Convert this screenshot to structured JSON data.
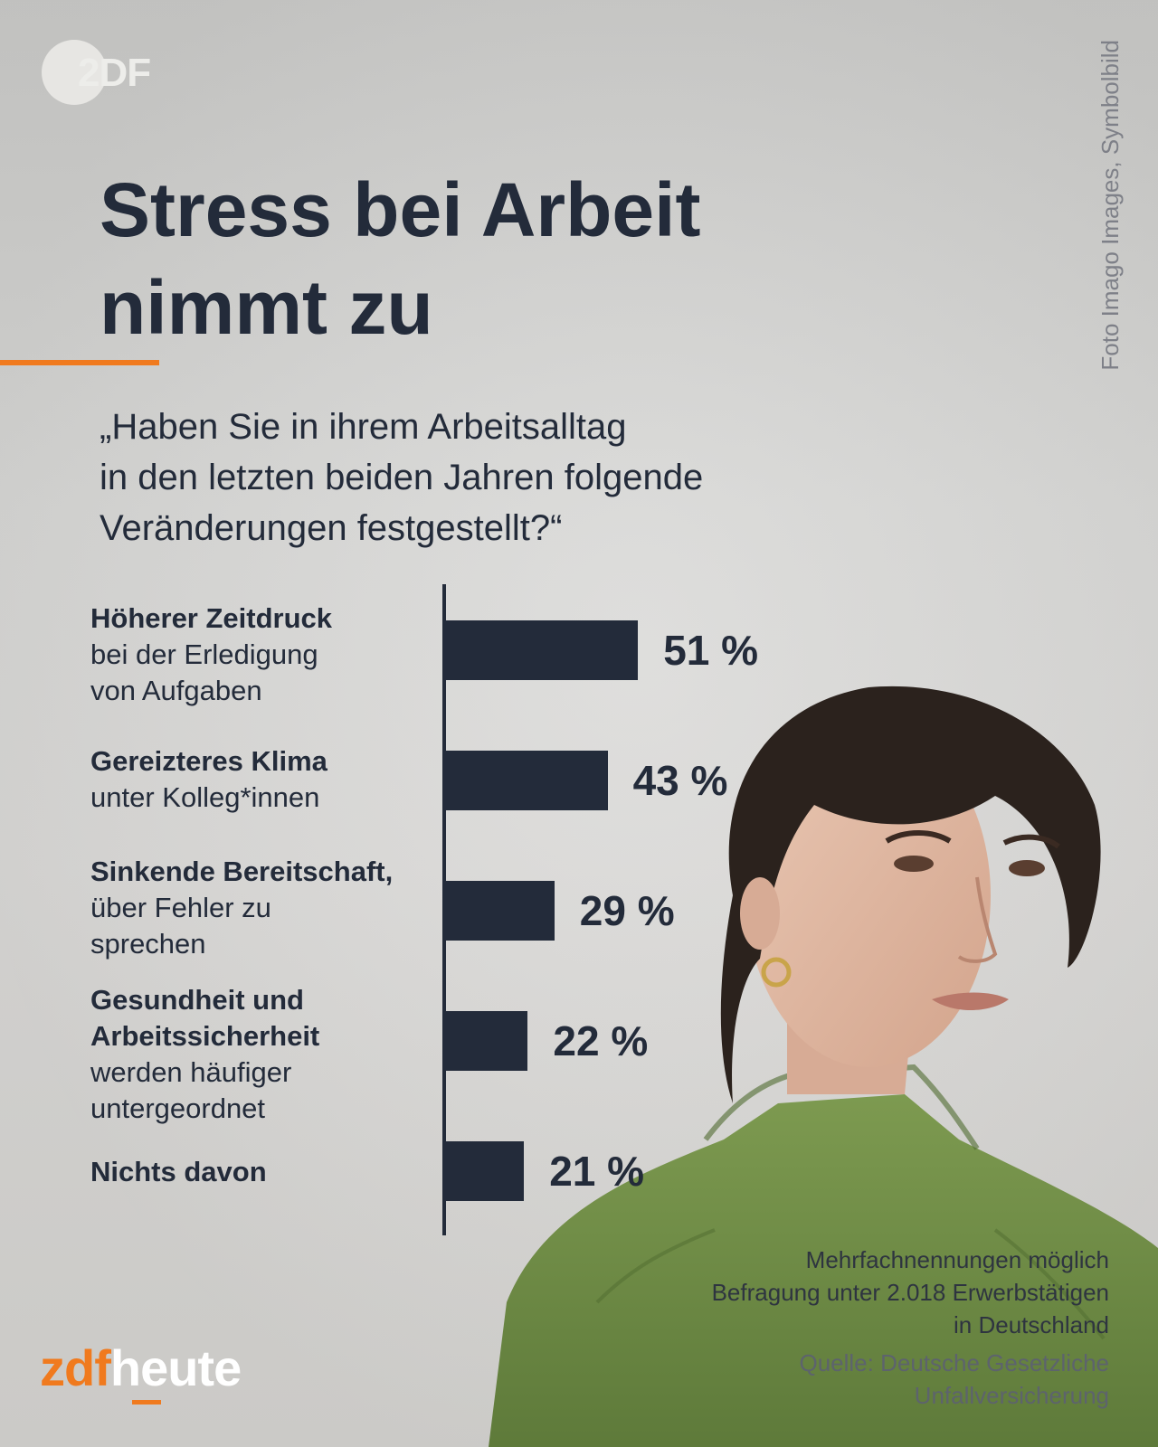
{
  "header": {
    "logo_text": "2DF",
    "credit": "Foto Imago Images, Symbolbild",
    "title_lines": [
      "Stress bei Arbeit",
      "nimmt zu"
    ],
    "question_lines": [
      "„Haben Sie in ihrem Arbeitsalltag",
      "in den letzten beiden Jahren folgende",
      "Veränderungen festgestellt?“"
    ]
  },
  "chart_data": {
    "type": "bar",
    "orientation": "horizontal",
    "categories": [
      "Höherer Zeitdruck bei der Erledigung von Aufgaben",
      "Gereizteres Klima unter Kolleg*innen",
      "Sinkende Bereitschaft, über Fehler zu sprechen",
      "Gesundheit und Arbeitssicherheit werden häufiger untergeordnet",
      "Nichts davon"
    ],
    "category_labels": [
      {
        "bold": [
          "Höherer Zeitdruck"
        ],
        "regular": [
          "bei der Erledigung",
          "von Aufgaben"
        ]
      },
      {
        "bold": [
          "Gereizteres Klima"
        ],
        "regular": [
          "unter Kolleg*innen"
        ]
      },
      {
        "bold": [
          "Sinkende Bereitschaft,"
        ],
        "regular": [
          "über Fehler zu",
          "sprechen"
        ]
      },
      {
        "bold": [
          "Gesundheit und",
          "Arbeitssicherheit"
        ],
        "regular": [
          "werden häufiger",
          "untergeordnet"
        ]
      },
      {
        "bold": [
          "Nichts davon"
        ],
        "regular": []
      }
    ],
    "values": [
      51,
      43,
      29,
      22,
      21
    ],
    "value_labels": [
      "51 %",
      "43 %",
      "29 %",
      "22 %",
      "21 %"
    ],
    "unit": "%",
    "xlim": [
      0,
      100
    ],
    "bar_color": "#232b3a"
  },
  "notes": {
    "lines": [
      "Mehrfachnennungen möglich",
      "Befragung unter 2.018 Erwerbstätigen",
      "in Deutschland"
    ],
    "source_lines": [
      "Quelle: Deutsche Gesetzliche",
      "Unfallversicherung"
    ]
  },
  "brand": {
    "part1": "zdf",
    "part2": "heute"
  },
  "colors": {
    "accent": "#f07a1e",
    "text": "#232b3a"
  }
}
